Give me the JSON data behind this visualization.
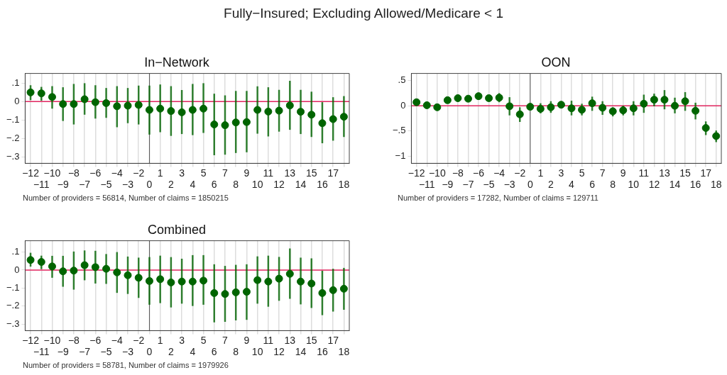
{
  "chart_data": [
    {
      "type": "other",
      "title": "Fully−Insured; Excluding Allowed/Medicare < 1"
    },
    {
      "type": "scatter",
      "title": "In−Network",
      "categories": [
        "−12",
        "−11",
        "−10",
        "−9",
        "−8",
        "−7",
        "−6",
        "−5",
        "−4",
        "−3",
        "−2",
        "0",
        "1",
        "2",
        "3",
        "4",
        "5",
        "6",
        "7",
        "8",
        "9",
        "10",
        "11",
        "12",
        "13",
        "14",
        "15",
        "16",
        "17",
        "18"
      ],
      "series": [
        {
          "color": "#006400",
          "values": [
            0.05,
            0.045,
            0.025,
            -0.013,
            -0.013,
            0.013,
            -0.003,
            -0.008,
            -0.025,
            -0.022,
            -0.018,
            -0.045,
            -0.038,
            -0.051,
            -0.058,
            -0.045,
            -0.038,
            -0.124,
            -0.128,
            -0.113,
            -0.111,
            -0.045,
            -0.054,
            -0.049,
            -0.021,
            -0.055,
            -0.071,
            -0.117,
            -0.095,
            -0.082
          ],
          "errors": [
            [
              0.008,
              0.089
            ],
            [
              0.005,
              0.08
            ],
            [
              -0.038,
              0.084
            ],
            [
              -0.105,
              0.078
            ],
            [
              -0.124,
              0.096
            ],
            [
              -0.071,
              0.1
            ],
            [
              -0.092,
              0.089
            ],
            [
              -0.088,
              0.074
            ],
            [
              -0.139,
              0.084
            ],
            [
              -0.117,
              0.074
            ],
            [
              -0.124,
              0.087
            ],
            [
              -0.179,
              0.087
            ],
            [
              -0.166,
              0.093
            ],
            [
              -0.186,
              0.084
            ],
            [
              -0.176,
              0.063
            ],
            [
              -0.182,
              0.096
            ],
            [
              -0.17,
              0.1
            ],
            [
              -0.291,
              0.043
            ],
            [
              -0.288,
              0.034
            ],
            [
              -0.279,
              0.058
            ],
            [
              -0.275,
              0.058
            ],
            [
              -0.174,
              0.083
            ],
            [
              -0.189,
              0.078
            ],
            [
              -0.163,
              0.064
            ],
            [
              -0.153,
              0.113
            ],
            [
              -0.176,
              0.064
            ],
            [
              -0.192,
              0.054
            ],
            [
              -0.226,
              -0.003
            ],
            [
              -0.212,
              0.024
            ],
            [
              -0.192,
              0.03
            ]
          ]
        }
      ],
      "ylim": [
        -0.335,
        0.153
      ],
      "yticks": [
        {
          "value": -0.3,
          "label": "−.3"
        },
        {
          "value": -0.2,
          "label": "−.2"
        },
        {
          "value": -0.1,
          "label": "−.1"
        },
        {
          "value": 0,
          "label": "0"
        },
        {
          "value": 0.1,
          "label": ".1"
        }
      ],
      "grid": "x",
      "marker": "circle",
      "ref_lines": [
        {
          "axis": "y",
          "value": 0,
          "color": "#e0245e"
        },
        {
          "axis": "x",
          "value": "0",
          "color": "#555555"
        }
      ],
      "annotations": [
        "Number of providers = 56814, Number of claims = 1850215"
      ]
    },
    {
      "type": "scatter",
      "title": "OON",
      "categories": [
        "−12",
        "−11",
        "−10",
        "−9",
        "−8",
        "−7",
        "−6",
        "−5",
        "−4",
        "−3",
        "−2",
        "0",
        "1",
        "2",
        "3",
        "4",
        "5",
        "6",
        "7",
        "8",
        "9",
        "10",
        "11",
        "12",
        "13",
        "14",
        "15",
        "16",
        "17",
        "18"
      ],
      "series": [
        {
          "color": "#006400",
          "values": [
            0.07,
            0.01,
            -0.03,
            0.11,
            0.15,
            0.14,
            0.19,
            0.15,
            0.16,
            -0.01,
            -0.17,
            -0.02,
            -0.06,
            -0.03,
            0.02,
            -0.05,
            -0.08,
            0.05,
            -0.04,
            -0.11,
            -0.09,
            -0.05,
            0.04,
            0.12,
            0.12,
            0.0,
            0.09,
            -0.1,
            -0.44,
            -0.6
          ],
          "errors": [
            [
              0.02,
              0.12
            ],
            [
              -0.03,
              0.05
            ],
            [
              -0.08,
              0.01
            ],
            [
              0.06,
              0.16
            ],
            [
              0.1,
              0.2
            ],
            [
              0.09,
              0.19
            ],
            [
              0.14,
              0.23
            ],
            [
              0.1,
              0.2
            ],
            [
              0.07,
              0.25
            ],
            [
              -0.19,
              0.17
            ],
            [
              -0.32,
              -0.03
            ],
            [
              -0.07,
              0.04
            ],
            [
              -0.15,
              0.05
            ],
            [
              -0.14,
              0.09
            ],
            [
              -0.03,
              0.09
            ],
            [
              -0.19,
              0.1
            ],
            [
              -0.19,
              0.04
            ],
            [
              -0.1,
              0.18
            ],
            [
              -0.18,
              0.09
            ],
            [
              -0.21,
              -0.03
            ],
            [
              -0.19,
              0.0
            ],
            [
              -0.19,
              0.09
            ],
            [
              -0.14,
              0.22
            ],
            [
              -0.01,
              0.24
            ],
            [
              -0.07,
              0.31
            ],
            [
              -0.15,
              0.16
            ],
            [
              -0.1,
              0.27
            ],
            [
              -0.27,
              0.06
            ],
            [
              -0.58,
              -0.31
            ],
            [
              -0.72,
              -0.49
            ]
          ]
        }
      ],
      "ylim": [
        -1.14,
        0.64
      ],
      "yticks": [
        {
          "value": -1,
          "label": "−1"
        },
        {
          "value": -0.5,
          "label": "−.5"
        },
        {
          "value": 0,
          "label": "0"
        },
        {
          "value": 0.5,
          "label": ".5"
        }
      ],
      "grid": "x",
      "marker": "circle",
      "ref_lines": [
        {
          "axis": "y",
          "value": 0,
          "color": "#e0245e"
        },
        {
          "axis": "x",
          "value": "0",
          "color": "#555555"
        }
      ],
      "annotations": [
        "Number of providers = 17282, Number of claims = 129711"
      ]
    },
    {
      "type": "scatter",
      "title": "Combined",
      "categories": [
        "−12",
        "−11",
        "−10",
        "−9",
        "−8",
        "−7",
        "−6",
        "−5",
        "−4",
        "−3",
        "−2",
        "0",
        "1",
        "2",
        "3",
        "4",
        "5",
        "6",
        "7",
        "8",
        "9",
        "10",
        "11",
        "12",
        "13",
        "14",
        "15",
        "16",
        "17",
        "18"
      ],
      "series": [
        {
          "color": "#006400",
          "values": [
            0.056,
            0.045,
            0.02,
            -0.007,
            -0.003,
            0.027,
            0.016,
            0.007,
            -0.013,
            -0.029,
            -0.043,
            -0.061,
            -0.051,
            -0.069,
            -0.064,
            -0.064,
            -0.059,
            -0.128,
            -0.133,
            -0.124,
            -0.121,
            -0.056,
            -0.064,
            -0.048,
            -0.021,
            -0.064,
            -0.075,
            -0.128,
            -0.112,
            -0.104
          ],
          "errors": [
            [
              0.019,
              0.096
            ],
            [
              0.005,
              0.08
            ],
            [
              -0.043,
              0.079
            ],
            [
              -0.093,
              0.079
            ],
            [
              -0.109,
              0.103
            ],
            [
              -0.057,
              0.109
            ],
            [
              -0.075,
              0.107
            ],
            [
              -0.077,
              0.089
            ],
            [
              -0.127,
              0.1
            ],
            [
              -0.133,
              0.075
            ],
            [
              -0.155,
              0.069
            ],
            [
              -0.193,
              0.072
            ],
            [
              -0.184,
              0.08
            ],
            [
              -0.208,
              0.072
            ],
            [
              -0.187,
              0.063
            ],
            [
              -0.2,
              0.083
            ],
            [
              -0.193,
              0.083
            ],
            [
              -0.291,
              0.032
            ],
            [
              -0.288,
              0.023
            ],
            [
              -0.28,
              0.029
            ],
            [
              -0.277,
              0.032
            ],
            [
              -0.187,
              0.076
            ],
            [
              -0.204,
              0.08
            ],
            [
              -0.171,
              0.073
            ],
            [
              -0.16,
              0.12
            ],
            [
              -0.191,
              0.069
            ],
            [
              -0.211,
              0.065
            ],
            [
              -0.251,
              -0.004
            ],
            [
              -0.231,
              0.007
            ],
            [
              -0.221,
              0.012
            ]
          ]
        }
      ],
      "ylim": [
        -0.337,
        0.163
      ],
      "yticks": [
        {
          "value": -0.3,
          "label": "−.3"
        },
        {
          "value": -0.2,
          "label": "−.2"
        },
        {
          "value": -0.1,
          "label": "−.1"
        },
        {
          "value": 0,
          "label": "0"
        },
        {
          "value": 0.1,
          "label": ".1"
        }
      ],
      "grid": "x",
      "marker": "circle",
      "ref_lines": [
        {
          "axis": "y",
          "value": 0,
          "color": "#e0245e"
        },
        {
          "axis": "x",
          "value": "0",
          "color": "#555555"
        }
      ],
      "annotations": [
        "Number of providers = 58781, Number of claims = 1979926"
      ]
    }
  ]
}
